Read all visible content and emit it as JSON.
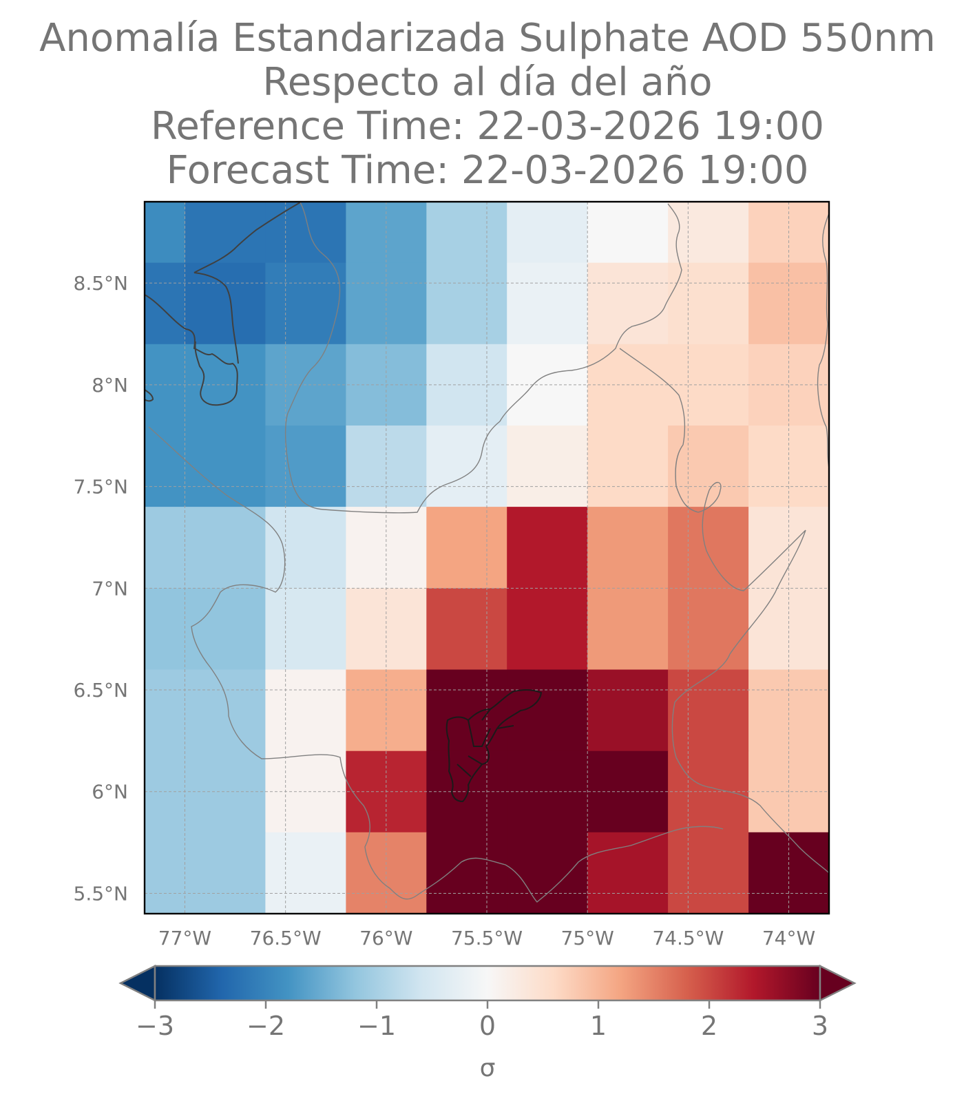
{
  "title": {
    "line1": "Anomalía Estandarizada Sulphate AOD 550nm",
    "line2": "Respecto al día del año",
    "line3": "Reference Time: 22-03-2026 19:00",
    "line4": "Forecast Time: 22-03-2026 19:00"
  },
  "map": {
    "lon_range": [
      -77.2,
      -73.8
    ],
    "lat_range": [
      5.4,
      8.9
    ],
    "lat_ticks": [
      {
        "value": 8.5,
        "label": "8.5°N"
      },
      {
        "value": 8.0,
        "label": "8°N"
      },
      {
        "value": 7.5,
        "label": "7.5°N"
      },
      {
        "value": 7.0,
        "label": "7°N"
      },
      {
        "value": 6.5,
        "label": "6.5°N"
      },
      {
        "value": 6.0,
        "label": "6°N"
      },
      {
        "value": 5.5,
        "label": "5.5°N"
      }
    ],
    "lon_ticks": [
      {
        "value": -77.0,
        "label": "77°W"
      },
      {
        "value": -76.5,
        "label": "76.5°W"
      },
      {
        "value": -76.0,
        "label": "76°W"
      },
      {
        "value": -75.5,
        "label": "75.5°W"
      },
      {
        "value": -75.0,
        "label": "75°W"
      },
      {
        "value": -74.5,
        "label": "74.5°W"
      },
      {
        "value": -74.0,
        "label": "74°W"
      }
    ],
    "grid": true
  },
  "chart_data": {
    "type": "heatmap",
    "title": "Anomalía Estandarizada Sulphate AOD 550nm\nRespecto al día del año\nReference Time: 22-03-2026 19:00\nForecast Time: 22-03-2026 19:00",
    "x_edges": [
      -77.2,
      -77.0,
      -76.6,
      -76.2,
      -75.8,
      -75.4,
      -75.0,
      -74.6,
      -74.2,
      -73.8
    ],
    "y_edges": [
      8.9,
      8.6,
      8.2,
      7.8,
      7.4,
      7.0,
      6.6,
      6.2,
      5.8,
      5.4
    ],
    "values": [
      [
        -1.9,
        -2.2,
        -2.2,
        -1.6,
        -1.0,
        -0.3,
        0.0,
        0.3,
        0.7
      ],
      [
        -2.2,
        -2.3,
        -2.1,
        -1.6,
        -1.0,
        -0.2,
        0.4,
        0.5,
        0.9
      ],
      [
        -1.8,
        -1.8,
        -1.6,
        -1.3,
        -0.6,
        0.0,
        0.6,
        0.6,
        0.7
      ],
      [
        -1.8,
        -1.8,
        -1.7,
        -0.8,
        -0.3,
        0.2,
        0.6,
        0.8,
        0.6
      ],
      [
        -1.1,
        -1.1,
        -0.6,
        0.1,
        1.2,
        2.4,
        1.3,
        1.6,
        0.4
      ],
      [
        -1.2,
        -1.2,
        -0.5,
        0.4,
        2.0,
        2.4,
        1.3,
        1.6,
        0.4
      ],
      [
        -1.1,
        -1.1,
        0.1,
        1.1,
        3.2,
        3.2,
        2.6,
        2.0,
        0.8
      ],
      [
        -1.1,
        -1.1,
        0.1,
        2.3,
        3.2,
        3.2,
        3.2,
        2.0,
        0.8
      ],
      [
        -1.1,
        -1.1,
        -0.2,
        1.5,
        3.2,
        3.2,
        2.5,
        2.0,
        3.2
      ]
    ],
    "colorbar": {
      "ticks": [
        -3,
        -2,
        -1,
        0,
        1,
        2,
        3
      ],
      "tick_labels": [
        "−3",
        "−2",
        "−1",
        "0",
        "1",
        "2",
        "3"
      ],
      "label": "σ",
      "range": [
        -3,
        3
      ],
      "extend": "both",
      "colormap": "RdBu_r"
    }
  },
  "colors": {
    "text": "#757575",
    "grid": "#a0a0a0",
    "border": "#808080",
    "coast": "#404040"
  }
}
